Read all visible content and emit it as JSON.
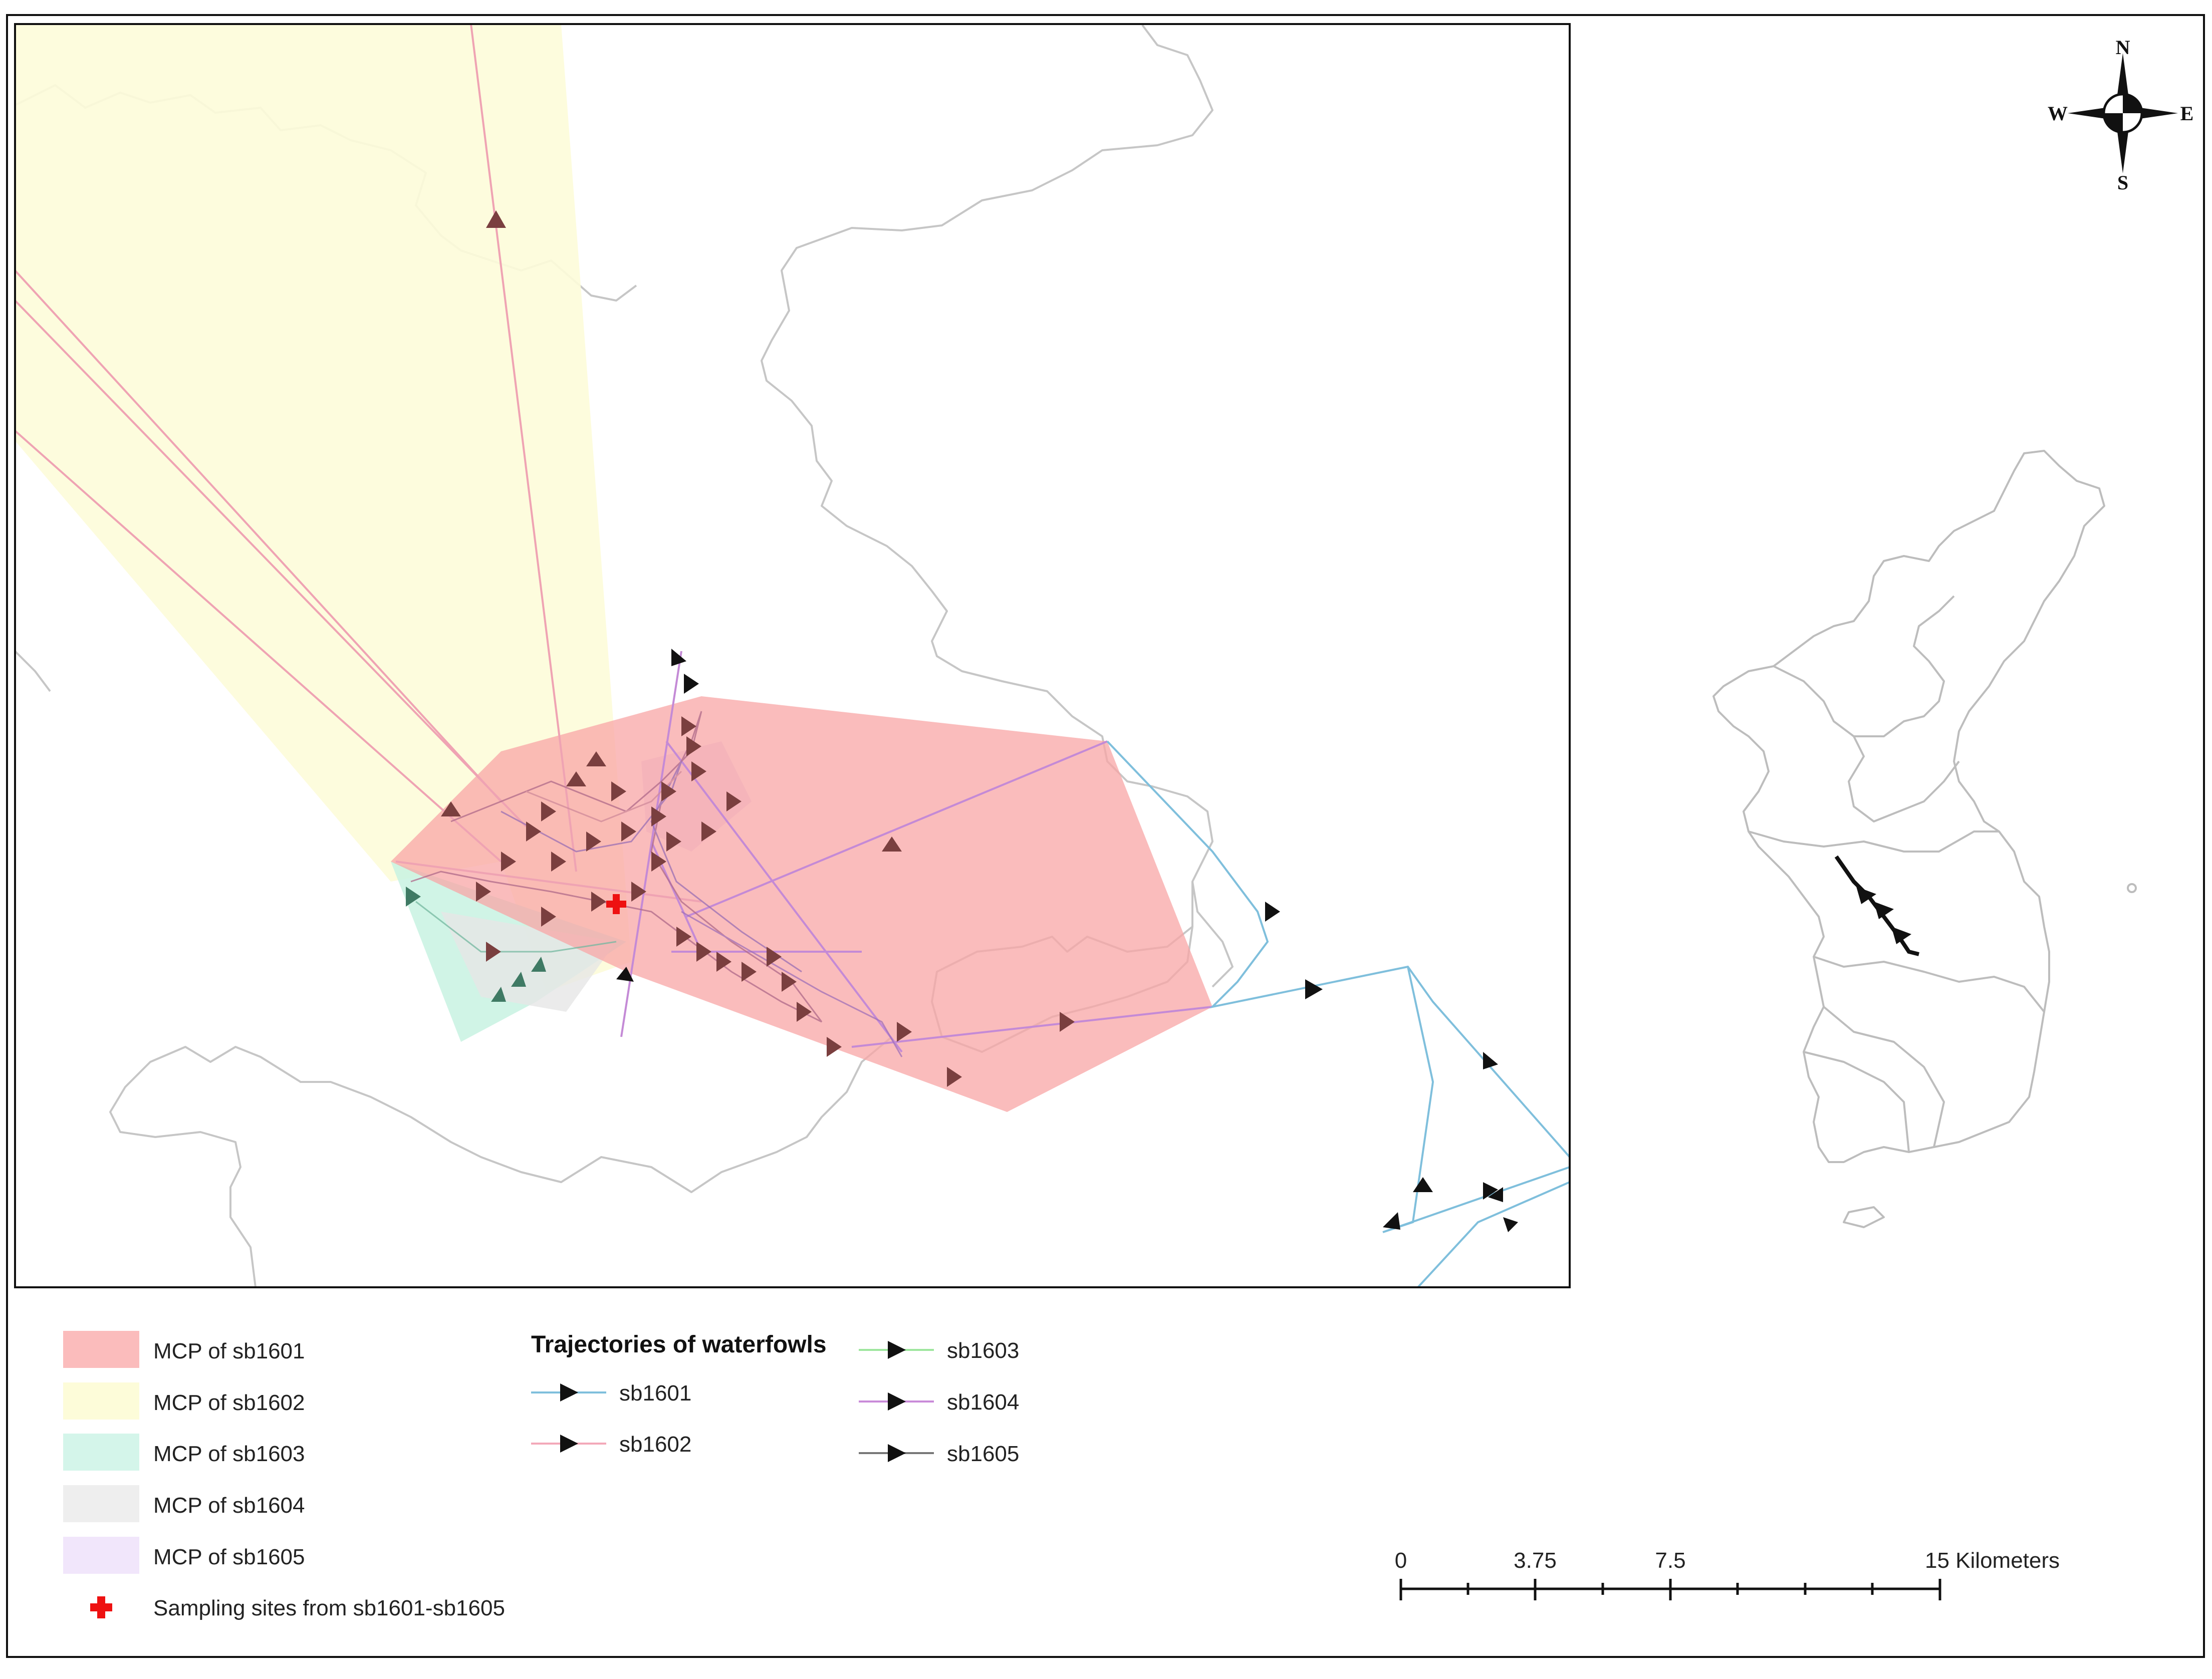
{
  "legend": {
    "mcp_items": [
      {
        "label": "MCP of sb1601",
        "color": "#fbbcbc"
      },
      {
        "label": "MCP of sb1602",
        "color": "#fdfcd9"
      },
      {
        "label": "MCP of sb1603",
        "color": "#d4f5ea"
      },
      {
        "label": "MCP of sb1604",
        "color": "#eeeeee"
      },
      {
        "label": "MCP of sb1605",
        "color": "#f1e6fb"
      }
    ],
    "sampling_label": "Sampling sites from sb1601-sb1605",
    "sampling_color": "#ee1111",
    "trajectories_title": "Trajectories of waterfowls",
    "trajectory_items": [
      {
        "label": "sb1601",
        "color": "#7fbfdc"
      },
      {
        "label": "sb1602",
        "color": "#f3a9b9"
      },
      {
        "label": "sb1603",
        "color": "#9ee69e"
      },
      {
        "label": "sb1604",
        "color": "#c98bd9"
      },
      {
        "label": "sb1605",
        "color": "#777777"
      }
    ]
  },
  "compass": {
    "n": "N",
    "e": "E",
    "s": "S",
    "w": "W"
  },
  "scale_bar": {
    "labels": [
      "0",
      "3.75",
      "7.5",
      "15 Kilometers"
    ]
  },
  "colors": {
    "boundary": "#bdbdbd",
    "frame": "#111111",
    "arrow": "#111111",
    "arrow_in_mcp": "#7a3f3f"
  }
}
